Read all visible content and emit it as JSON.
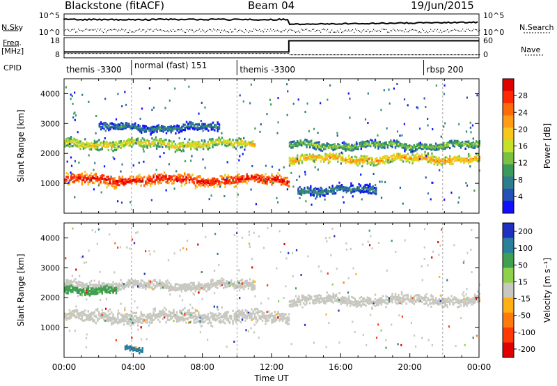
{
  "header": {
    "radar_title": "Blackstone (fitACF)",
    "beam": "Beam 04",
    "date": "19/Jun/2015"
  },
  "params": {
    "nsky_label": "N.Sky",
    "nsky_ticks": [
      "10^5",
      "10^0"
    ],
    "nsearch_label": "N.Search",
    "nsearch_ticks": [
      "10^5",
      "10^0"
    ],
    "freq_label": "Freq.",
    "freq_unit": "[MHz]",
    "freq_ticks": [
      "18",
      "8"
    ],
    "nave_label": "Nave",
    "nave_ticks": [
      "60",
      "0"
    ],
    "cpid_label": "CPID",
    "freq_steps": [
      {
        "t": 0,
        "v": 10.5
      },
      {
        "t": 13.0,
        "v": 17.8
      }
    ]
  },
  "cpid_segments": [
    {
      "label": "themis -3300",
      "start": 0.0
    },
    {
      "label": "normal (fast) 151",
      "start": 3.9
    },
    {
      "label": "themis -3300",
      "start": 10.0
    },
    {
      "label": "rbsp 200",
      "start": 20.8
    }
  ],
  "chart_data": [
    {
      "type": "heatmap",
      "name": "power",
      "ylabel": "Slant Range [km]",
      "yticks": [
        1000,
        2000,
        3000,
        4000
      ],
      "ylim": [
        0,
        4500
      ],
      "xlim": [
        0,
        24
      ],
      "colorbar_label": "Power [dB]",
      "colorbar_ticks": [
        "4",
        "8",
        "12",
        "16",
        "20",
        "24",
        "28"
      ],
      "colorbar_colors": [
        "#1010ff",
        "#2450b8",
        "#2e7d8c",
        "#3a9a5a",
        "#7ac143",
        "#c7e02a",
        "#f6c81e",
        "#ff9c14",
        "#ff6a0a",
        "#ff2a04",
        "#e00000"
      ],
      "bands": [
        {
          "t0": 0.0,
          "t1": 13.0,
          "r": 1150,
          "w": 300,
          "level": 0.95
        },
        {
          "t0": 13.0,
          "t1": 24.0,
          "r": 1850,
          "w": 240,
          "level": 0.7
        },
        {
          "t0": 0.0,
          "t1": 11.0,
          "r": 2350,
          "w": 260,
          "level": 0.6
        },
        {
          "t0": 13.0,
          "t1": 24.0,
          "r": 2300,
          "w": 200,
          "level": 0.45
        },
        {
          "t0": 2.0,
          "t1": 9.0,
          "r": 2900,
          "w": 220,
          "level": 0.3
        },
        {
          "t0": 13.5,
          "t1": 18.0,
          "r": 800,
          "w": 250,
          "level": 0.3
        }
      ]
    },
    {
      "type": "heatmap",
      "name": "velocity",
      "ylabel": "Slant Range [km]",
      "yticks": [
        1000,
        2000,
        3000,
        4000
      ],
      "ylim": [
        0,
        4500
      ],
      "xlim": [
        0,
        24
      ],
      "xticks": [
        "00:00",
        "04:00",
        "08:00",
        "12:00",
        "16:00",
        "20:00",
        "00:00"
      ],
      "xlabel": "Time UT",
      "colorbar_label": "Velocity [m s^-1]",
      "colorbar_ticks": [
        "200",
        "100",
        "50",
        "15",
        "-15",
        "-50",
        "-100",
        "-200"
      ],
      "colorbar_colors": [
        "#2030c0",
        "#2a7f9c",
        "#3ea050",
        "#8dd24a",
        "#c8c8c0",
        "#ffb014",
        "#ff7a0a",
        "#ff3a04",
        "#e00000"
      ],
      "bands": [
        {
          "t0": 0.0,
          "t1": 13.0,
          "r": 1400,
          "w": 380,
          "level": 0.5
        },
        {
          "t0": 13.0,
          "t1": 24.0,
          "r": 1950,
          "w": 300,
          "level": 0.5
        },
        {
          "t0": 0.0,
          "t1": 11.0,
          "r": 2450,
          "w": 250,
          "level": 0.5
        },
        {
          "t0": 0.0,
          "t1": 3.0,
          "r": 2300,
          "w": 200,
          "level": 0.75
        },
        {
          "t0": 3.5,
          "t1": 4.5,
          "r": 300,
          "w": 150,
          "level": 0.8
        }
      ]
    }
  ]
}
